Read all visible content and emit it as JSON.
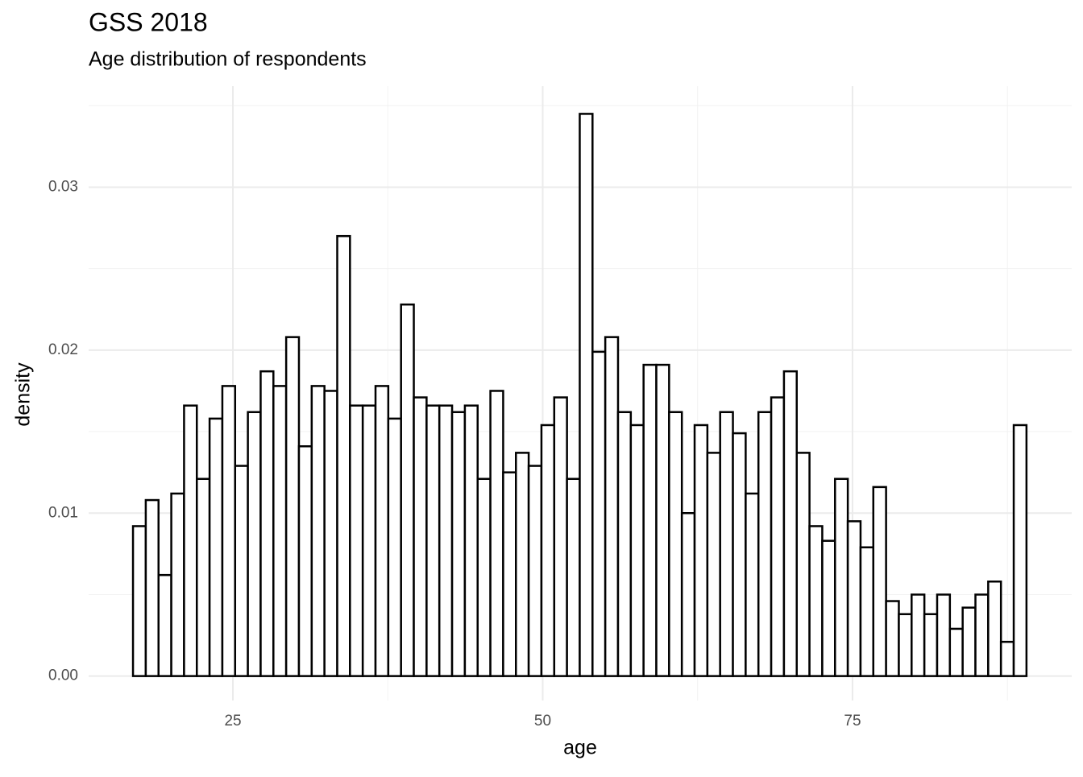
{
  "chart_data": {
    "type": "histogram",
    "title": "GSS 2018",
    "subtitle": "Age distribution of respondents",
    "x_label": "age",
    "y_label": "density",
    "bins": [
      16.94,
      17.97,
      19.0,
      20.03,
      21.06,
      22.09,
      23.12,
      24.15,
      25.18,
      26.21,
      27.24,
      28.27,
      29.3,
      30.33,
      31.36,
      32.39,
      33.42,
      34.45,
      35.48,
      36.51,
      37.54,
      38.57,
      39.6,
      40.63,
      41.66,
      42.69,
      43.72,
      44.75,
      45.78,
      46.81,
      47.84,
      48.87,
      49.9,
      50.93,
      51.96,
      52.99,
      54.02,
      55.05,
      56.08,
      57.11,
      58.14,
      59.17,
      60.2,
      61.23,
      62.26,
      63.29,
      64.32,
      65.35,
      66.38,
      67.41,
      68.44,
      69.47,
      70.5,
      71.53,
      72.56,
      73.59,
      74.62,
      75.65,
      76.68,
      77.71,
      78.74,
      79.77,
      80.8,
      81.83,
      82.86,
      83.89,
      84.92,
      85.95,
      86.98,
      88.01,
      89.04
    ],
    "values": [
      0.0092,
      0.0108,
      0.0062,
      0.0112,
      0.0166,
      0.0121,
      0.0158,
      0.0178,
      0.0129,
      0.0162,
      0.0187,
      0.0178,
      0.0208,
      0.0141,
      0.0178,
      0.0175,
      0.027,
      0.0166,
      0.0166,
      0.0178,
      0.0158,
      0.0228,
      0.0171,
      0.0166,
      0.0166,
      0.0162,
      0.0166,
      0.0121,
      0.0175,
      0.0125,
      0.0137,
      0.0129,
      0.0154,
      0.0171,
      0.0121,
      0.0345,
      0.0199,
      0.0208,
      0.0162,
      0.0154,
      0.0191,
      0.0191,
      0.0162,
      0.01,
      0.0154,
      0.0137,
      0.0162,
      0.0149,
      0.0112,
      0.0162,
      0.0171,
      0.0187,
      0.0137,
      0.0092,
      0.0083,
      0.0121,
      0.0095,
      0.0079,
      0.0116,
      0.0046,
      0.0038,
      0.005,
      0.0038,
      0.005,
      0.0029,
      0.0042,
      0.005,
      0.0058,
      0.0021,
      0.0154
    ],
    "fill": "#ffffff",
    "color": "#000000",
    "xlim": [
      13.36,
      92.69
    ],
    "ylim": [
      -0.0015,
      0.0362
    ],
    "xticks": [
      25,
      50,
      75
    ],
    "yticks": [
      {
        "value": 0,
        "label": "0.00"
      },
      0.01,
      0.02,
      0.03
    ],
    "grid": true
  }
}
